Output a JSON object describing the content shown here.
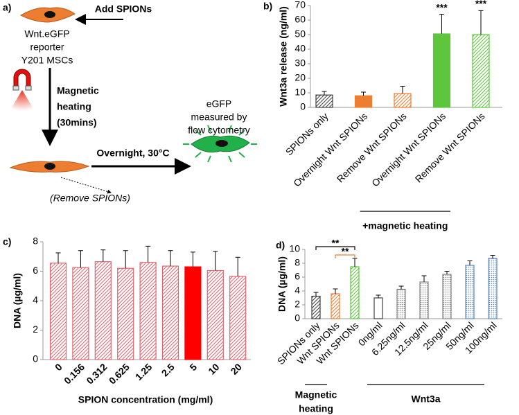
{
  "diagram": {
    "panel_label": "a)",
    "add_label": "Add SPIONs",
    "cell_label": [
      "Wnt.eGFP",
      "reporter",
      "Y201 MSCs"
    ],
    "heating_label": [
      "Magnetic",
      "heating",
      "(30mins)"
    ],
    "overnight_label": "Overnight, 30°C",
    "readout_label": [
      "eGFP",
      "measured by",
      "flow cytometry"
    ],
    "remove_label": "(Remove SPIONs)"
  },
  "chart_data": [
    {
      "type": "bar",
      "panel_label": "b)",
      "ylabel": "Wnt3a release (ng/ml)",
      "categories": [
        "SPIONs only",
        "Overnight Wnt SPIONs",
        "Remove Wnt SPIONs",
        "Overnight Wnt SPIONs",
        "Remove Wnt SPIONs"
      ],
      "values": [
        8.5,
        8,
        9.5,
        50.5,
        50
      ],
      "errors": [
        2.5,
        2.5,
        5,
        13.5,
        16.5
      ],
      "colors": [
        "#404040",
        "#ed7d31",
        "#ed7d31",
        "#5ec63c",
        "#5ec63c"
      ],
      "patterns": [
        "hatch",
        "solid",
        "hatch",
        "solid",
        "hatch"
      ],
      "value_annotations": [
        null,
        null,
        null,
        "***",
        "***"
      ],
      "group_labels": [
        {
          "label": [
            "+magnetic heating"
          ],
          "from": 3,
          "to": 4
        }
      ],
      "ylim": [
        0,
        70
      ],
      "yticks": [
        0,
        10,
        20,
        30,
        40,
        50,
        60,
        70
      ]
    },
    {
      "type": "bar",
      "panel_label": "c)",
      "ylabel": "DNA (µg/ml)",
      "xlabel": "SPION concentration (mg/ml)",
      "categories": [
        "0",
        "0.156",
        "0.312",
        "0.625",
        "1.25",
        "2.5",
        "5",
        "10",
        "20"
      ],
      "values": [
        6.55,
        6.25,
        6.65,
        6.2,
        6.6,
        6.35,
        6.3,
        6.05,
        5.65
      ],
      "errors": [
        0.7,
        1.15,
        0.8,
        1.2,
        1.1,
        1.05,
        1.0,
        1.3,
        1.3
      ],
      "colors": [
        "#e06670",
        "#e06670",
        "#e06670",
        "#e06670",
        "#e06670",
        "#e06670",
        "#ff0000",
        "#e06670",
        "#e06670"
      ],
      "patterns": [
        "hatch",
        "hatch",
        "hatch",
        "hatch",
        "hatch",
        "hatch",
        "solid",
        "hatch",
        "hatch"
      ],
      "ylim": [
        0,
        8
      ],
      "yticks": [
        0,
        2,
        4,
        6,
        8
      ]
    },
    {
      "type": "bar",
      "panel_label": "d)",
      "ylabel": "DNA (µg/ml)",
      "categories": [
        "SPIONs only",
        "Wnt SPIONs",
        "Wnt SPIONs",
        "0ng/ml",
        "6.25ng/ml",
        "12.5ng/ml",
        "25ng/ml",
        "50ng/ml",
        "100ng/ml"
      ],
      "values": [
        3.25,
        3.6,
        7.5,
        3.0,
        4.25,
        5.3,
        6.4,
        7.7,
        8.7
      ],
      "errors": [
        0.55,
        0.7,
        1.2,
        0.4,
        0.45,
        0.9,
        0.45,
        0.65,
        0.45
      ],
      "colors": [
        "#404040",
        "#ed7d31",
        "#5ec63c",
        "#404040",
        "#7f7f7f",
        "#7f7f7f",
        "#7f7f7f",
        "#5b86b8",
        "#5b86b8"
      ],
      "patterns": [
        "hatch",
        "hatch",
        "hatch",
        "open",
        "dots",
        "dots",
        "dots",
        "dots",
        "dots"
      ],
      "group_labels": [
        {
          "label": [
            "Magnetic",
            "heating"
          ],
          "from": 0,
          "to": 1
        },
        {
          "label": [
            "Wnt3a"
          ],
          "from": 3,
          "to": 8
        }
      ],
      "brackets": [
        {
          "from": 0,
          "to": 2,
          "label": "**",
          "color": "#000000"
        },
        {
          "from": 1,
          "to": 2,
          "label": "**",
          "color": "#ed7d31"
        }
      ],
      "ylim": [
        0,
        10
      ],
      "yticks": [
        0,
        2,
        4,
        6,
        8,
        10
      ]
    }
  ]
}
